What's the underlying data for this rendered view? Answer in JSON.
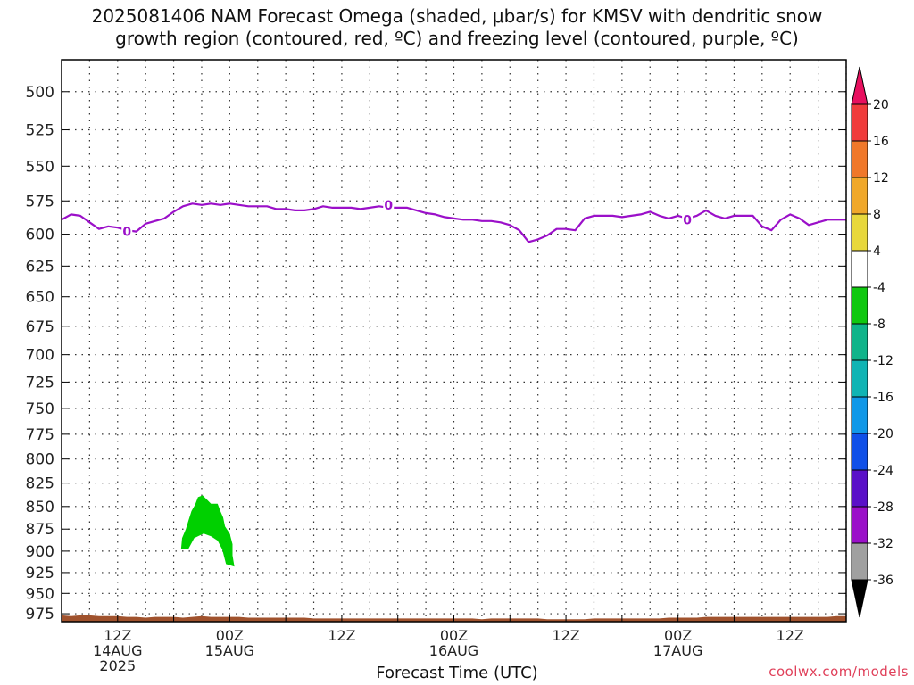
{
  "title_line1": "2025081406 NAM Forecast Omega (shaded, μbar/s) for KMSV with dendritic snow",
  "title_line2": "growth region (contoured, red, ºC) and freezing level (contoured, purple, ºC)",
  "xlabel": "Forecast Time (UTC)",
  "footer": "coolwx.com/models",
  "chart_data": {
    "type": "area",
    "title": "2025081406 NAM Forecast Omega (shaded, μbar/s) for KMSV with dendritic snow growth region (contoured, red, ºC) and freezing level (contoured, purple, ºC)",
    "xlabel": "Forecast Time (UTC)",
    "ylabel": "",
    "y_axis": "pressure (hPa), inverted",
    "ylim": [
      985,
      480
    ],
    "xlim_hours": [
      6,
      90
    ],
    "y_ticks": [
      500,
      525,
      550,
      575,
      600,
      625,
      650,
      675,
      700,
      725,
      750,
      775,
      800,
      825,
      850,
      875,
      900,
      925,
      950,
      975
    ],
    "x_ticks": [
      {
        "hour": 12,
        "lines": [
          "12Z",
          "14AUG",
          "2025"
        ]
      },
      {
        "hour": 24,
        "lines": [
          "00Z",
          "15AUG"
        ]
      },
      {
        "hour": 36,
        "lines": [
          "12Z"
        ]
      },
      {
        "hour": 48,
        "lines": [
          "00Z",
          "16AUG"
        ]
      },
      {
        "hour": 60,
        "lines": [
          "12Z"
        ]
      },
      {
        "hour": 72,
        "lines": [
          "00Z",
          "17AUG"
        ]
      },
      {
        "hour": 84,
        "lines": [
          "12Z"
        ]
      }
    ],
    "grid": true,
    "freezing_level": {
      "color": "#9b10c9",
      "label": "0",
      "label_positions": [
        [
          13.0,
          598
        ],
        [
          41.0,
          578
        ],
        [
          73.0,
          589
        ]
      ],
      "points": [
        [
          6,
          589
        ],
        [
          7,
          585
        ],
        [
          8,
          586
        ],
        [
          9,
          591
        ],
        [
          10,
          596
        ],
        [
          11,
          594
        ],
        [
          12,
          595
        ],
        [
          13,
          597
        ],
        [
          14,
          598
        ],
        [
          15,
          592
        ],
        [
          16,
          590
        ],
        [
          17,
          588
        ],
        [
          18,
          583
        ],
        [
          19,
          579
        ],
        [
          20,
          577
        ],
        [
          21,
          578
        ],
        [
          22,
          577
        ],
        [
          23,
          578
        ],
        [
          24,
          577
        ],
        [
          25,
          578
        ],
        [
          26,
          579
        ],
        [
          27,
          579
        ],
        [
          28,
          579
        ],
        [
          29,
          581
        ],
        [
          30,
          581
        ],
        [
          31,
          582
        ],
        [
          32,
          582
        ],
        [
          33,
          581
        ],
        [
          34,
          579
        ],
        [
          35,
          580
        ],
        [
          36,
          580
        ],
        [
          37,
          580
        ],
        [
          38,
          581
        ],
        [
          39,
          580
        ],
        [
          40,
          579
        ],
        [
          41,
          580
        ],
        [
          42,
          580
        ],
        [
          43,
          580
        ],
        [
          44,
          582
        ],
        [
          45,
          584
        ],
        [
          46,
          585
        ],
        [
          47,
          587
        ],
        [
          48,
          588
        ],
        [
          49,
          589
        ],
        [
          50,
          589
        ],
        [
          51,
          590
        ],
        [
          52,
          590
        ],
        [
          53,
          591
        ],
        [
          54,
          593
        ],
        [
          55,
          597
        ],
        [
          56,
          606
        ],
        [
          57,
          604
        ],
        [
          58,
          601
        ],
        [
          59,
          596
        ],
        [
          60,
          596
        ],
        [
          61,
          597
        ],
        [
          62,
          588
        ],
        [
          63,
          586
        ],
        [
          64,
          586
        ],
        [
          65,
          586
        ],
        [
          66,
          587
        ],
        [
          67,
          586
        ],
        [
          68,
          585
        ],
        [
          69,
          583
        ],
        [
          70,
          586
        ],
        [
          71,
          588
        ],
        [
          72,
          586
        ],
        [
          73,
          588
        ],
        [
          74,
          586
        ],
        [
          75,
          582
        ],
        [
          76,
          586
        ],
        [
          77,
          588
        ],
        [
          78,
          586
        ],
        [
          79,
          586
        ],
        [
          80,
          586
        ],
        [
          81,
          594
        ],
        [
          82,
          597
        ],
        [
          83,
          589
        ],
        [
          84,
          585
        ],
        [
          85,
          588
        ],
        [
          86,
          593
        ],
        [
          87,
          591
        ],
        [
          88,
          589
        ],
        [
          89,
          589
        ],
        [
          90,
          589
        ]
      ]
    },
    "omega_shading": {
      "color": "#00d000",
      "range": [
        -8,
        -4
      ],
      "outline": [
        [
          18.8,
          897
        ],
        [
          19.6,
          897
        ],
        [
          20.2,
          885
        ],
        [
          21.2,
          880
        ],
        [
          22.0,
          883
        ],
        [
          22.7,
          888
        ],
        [
          23.2,
          898
        ],
        [
          23.6,
          915
        ],
        [
          24.5,
          918
        ],
        [
          24.3,
          905
        ],
        [
          24.3,
          892
        ],
        [
          24.0,
          880
        ],
        [
          23.5,
          872
        ],
        [
          23.3,
          862
        ],
        [
          23.0,
          855
        ],
        [
          22.7,
          847
        ],
        [
          22.0,
          847
        ],
        [
          21.5,
          842
        ],
        [
          21.1,
          838
        ],
        [
          20.6,
          840
        ],
        [
          20.3,
          848
        ],
        [
          19.9,
          855
        ],
        [
          19.6,
          865
        ],
        [
          19.3,
          875
        ],
        [
          18.9,
          885
        ],
        [
          18.8,
          897
        ]
      ]
    },
    "terrain": {
      "color": "#a0522d",
      "top_points": [
        [
          6,
          977
        ],
        [
          7,
          978
        ],
        [
          8,
          977
        ],
        [
          9,
          977
        ],
        [
          10,
          978
        ],
        [
          11,
          978
        ],
        [
          12,
          978
        ],
        [
          13,
          979
        ],
        [
          14,
          979
        ],
        [
          15,
          980
        ],
        [
          16,
          979
        ],
        [
          17,
          979
        ],
        [
          18,
          979
        ],
        [
          19,
          980
        ],
        [
          20,
          979
        ],
        [
          21,
          978
        ],
        [
          22,
          979
        ],
        [
          23,
          979
        ],
        [
          24,
          979
        ],
        [
          25,
          979
        ],
        [
          26,
          980
        ],
        [
          27,
          980
        ],
        [
          28,
          980
        ],
        [
          29,
          980
        ],
        [
          30,
          980
        ],
        [
          31,
          980
        ],
        [
          32,
          980
        ],
        [
          33,
          981
        ],
        [
          34,
          981
        ],
        [
          35,
          981
        ],
        [
          36,
          981
        ],
        [
          37,
          981
        ],
        [
          38,
          981
        ],
        [
          39,
          981
        ],
        [
          40,
          981
        ],
        [
          41,
          981
        ],
        [
          42,
          981
        ],
        [
          43,
          981
        ],
        [
          44,
          981
        ],
        [
          45,
          981
        ],
        [
          46,
          981
        ],
        [
          47,
          981
        ],
        [
          48,
          981
        ],
        [
          49,
          981
        ],
        [
          50,
          981
        ],
        [
          51,
          982
        ],
        [
          52,
          981
        ],
        [
          53,
          981
        ],
        [
          54,
          981
        ],
        [
          55,
          981
        ],
        [
          56,
          981
        ],
        [
          57,
          981
        ],
        [
          58,
          982
        ],
        [
          59,
          982
        ],
        [
          60,
          982
        ],
        [
          61,
          982
        ],
        [
          62,
          982
        ],
        [
          63,
          981
        ],
        [
          64,
          981
        ],
        [
          65,
          981
        ],
        [
          66,
          981
        ],
        [
          67,
          981
        ],
        [
          68,
          981
        ],
        [
          69,
          981
        ],
        [
          70,
          981
        ],
        [
          71,
          980
        ],
        [
          72,
          980
        ],
        [
          73,
          980
        ],
        [
          74,
          980
        ],
        [
          75,
          979
        ],
        [
          76,
          979
        ],
        [
          77,
          979
        ],
        [
          78,
          979
        ],
        [
          79,
          979
        ],
        [
          80,
          979
        ],
        [
          81,
          979
        ],
        [
          82,
          979
        ],
        [
          83,
          979
        ],
        [
          84,
          979
        ],
        [
          85,
          979
        ],
        [
          86,
          979
        ],
        [
          87,
          979
        ],
        [
          88,
          979
        ],
        [
          89,
          978
        ],
        [
          90,
          978
        ]
      ]
    },
    "colorbar": {
      "labels": [
        "20",
        "16",
        "12",
        "8",
        "4",
        "-4",
        "-8",
        "-12",
        "-16",
        "-20",
        "-24",
        "-28",
        "-32",
        "-36"
      ],
      "colors": [
        "#e8105f",
        "#f03c3c",
        "#f0782a",
        "#f0a82a",
        "#e8d83c",
        "#ffffff",
        "#10c810",
        "#10b48a",
        "#10b4b4",
        "#1098e8",
        "#1050e8",
        "#5a10c8",
        "#9b10c9",
        "#a0a0a0",
        "#000000"
      ]
    }
  }
}
